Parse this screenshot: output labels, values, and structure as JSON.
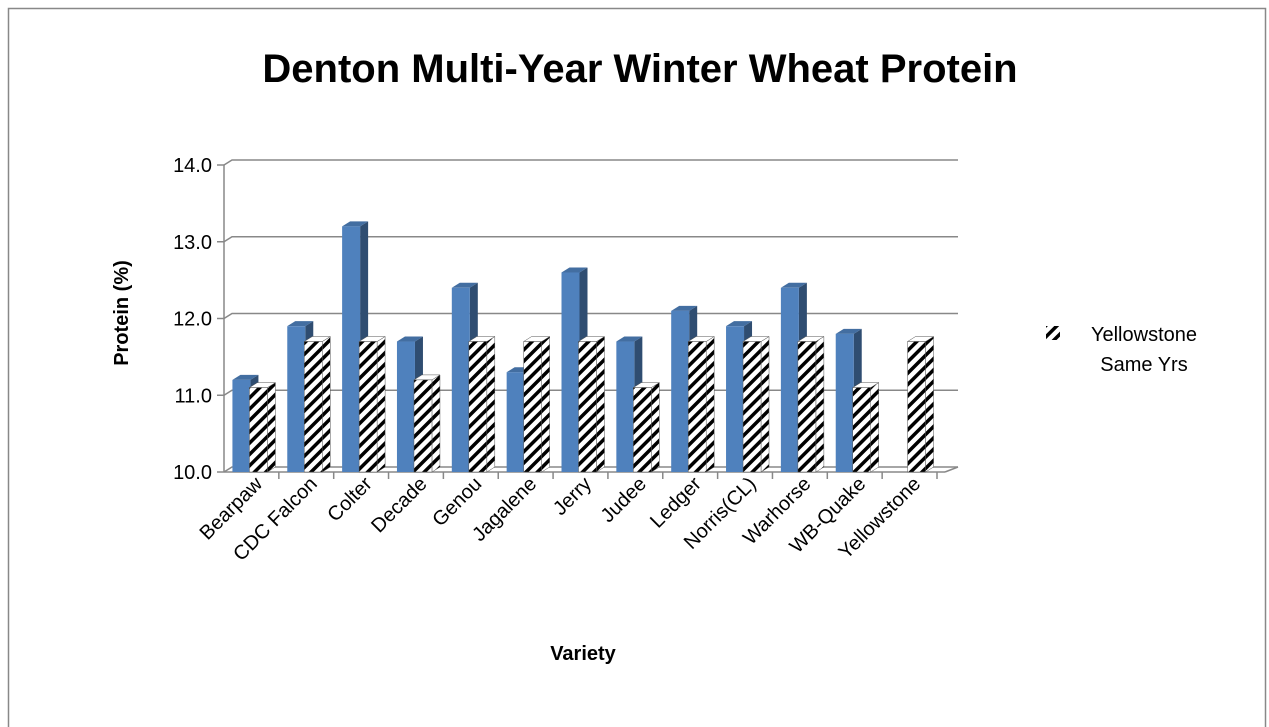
{
  "chart_data": {
    "type": "bar3d",
    "title": "Denton Multi-Year Winter Wheat Protein",
    "x_label": "Variety",
    "y_label": "Protein (%)",
    "categories": [
      "Bearpaw",
      "CDC Falcon",
      "Colter",
      "Decade",
      "Genou",
      "Jagalene",
      "Jerry",
      "Judee",
      "Ledger",
      "Norris(CL)",
      "Warhorse",
      "WB-Quake",
      "Yellowstone"
    ],
    "series": [
      {
        "color": "#4f81bd",
        "values": [
          11.2,
          11.9,
          13.2,
          11.7,
          12.4,
          11.3,
          12.6,
          11.7,
          12.1,
          11.9,
          12.4,
          11.8,
          null
        ]
      },
      {
        "name": "Yellowstone Same Yrs",
        "color": "#000000",
        "pattern": "hatch",
        "values": [
          11.1,
          11.7,
          11.7,
          11.2,
          11.7,
          11.7,
          11.7,
          11.1,
          11.7,
          11.7,
          11.7,
          11.1,
          11.7
        ]
      }
    ],
    "ylim": [
      10,
      14
    ],
    "yticks": [
      {
        "value": 10,
        "label": "10.0"
      },
      {
        "value": 11,
        "label": "11.0"
      },
      {
        "value": 12,
        "label": "12.0"
      },
      {
        "value": 13,
        "label": "13.0"
      },
      {
        "value": 14,
        "label": "14.0"
      }
    ],
    "grid": true,
    "legend": "right"
  }
}
